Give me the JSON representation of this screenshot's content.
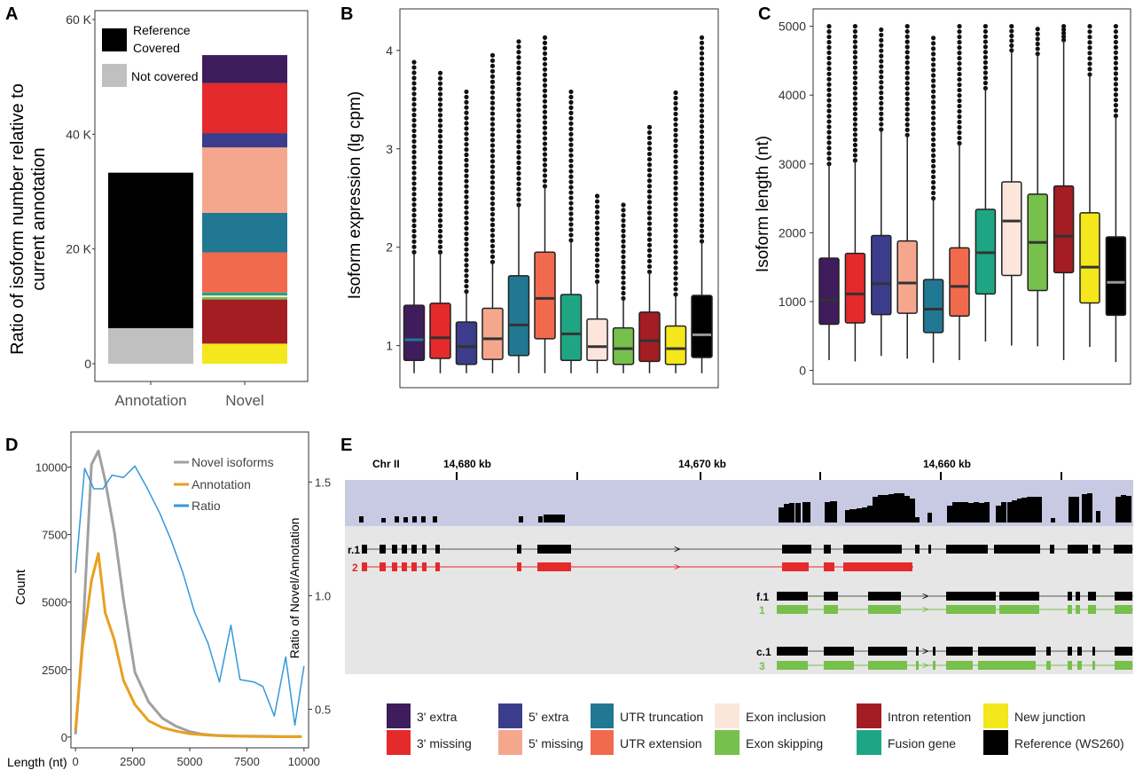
{
  "panel_labels": {
    "a": "A",
    "b": "B",
    "c": "C",
    "d": "D",
    "e": "E"
  },
  "colors": {
    "extra3": "#3f1c5b",
    "missing3": "#e52a2b",
    "extra5": "#3b3d8c",
    "missing5": "#f5a78e",
    "utr_trunc": "#217893",
    "utr_ext": "#f26a4d",
    "exon_incl": "#fce6dc",
    "exon_skip": "#77c04b",
    "intron_ret": "#a31d22",
    "fusion": "#1ea684",
    "new_junc": "#f4e71b",
    "reference": "#000000",
    "not_covered": "#c0c0c0",
    "novel_line": "#a0a0a0",
    "annotation_line": "#e8a01e",
    "ratio_line": "#3498db",
    "track_bg": "#c8c9e2",
    "tracks_bg": "#e6e6e6",
    "red_track": "#e52a2b",
    "green_track": "#77c04b"
  },
  "legend": [
    {
      "label": "3' extra",
      "color": "#3f1c5b"
    },
    {
      "label": "3' missing",
      "color": "#e52a2b"
    },
    {
      "label": "5' extra",
      "color": "#3b3d8c"
    },
    {
      "label": "5' missing",
      "color": "#f5a78e"
    },
    {
      "label": "UTR truncation",
      "color": "#217893"
    },
    {
      "label": "UTR extension",
      "color": "#f26a4d"
    },
    {
      "label": "Exon inclusion",
      "color": "#fce6dc"
    },
    {
      "label": "Exon skipping",
      "color": "#77c04b"
    },
    {
      "label": "Intron retention",
      "color": "#a31d22"
    },
    {
      "label": "Fusion gene",
      "color": "#1ea684"
    },
    {
      "label": "New junction",
      "color": "#f4e71b"
    },
    {
      "label": "Reference (WS260)",
      "color": "#000000"
    }
  ],
  "chart_data": [
    {
      "id": "A",
      "type": "bar",
      "ylabel": "Ratio of isoform number relative to current annotation",
      "yticks": [
        "0",
        "20 K",
        "40 K",
        "60 K"
      ],
      "ylim": [
        0,
        60000
      ],
      "categories": [
        "Annotation",
        "Novel"
      ],
      "legend": [
        {
          "label": "Reference Covered",
          "color": "#000000"
        },
        {
          "label": "Not covered",
          "color": "#c0c0c0"
        }
      ],
      "stacks": [
        {
          "category": "Annotation",
          "segments": [
            {
              "name": "Not covered",
              "value": 6200,
              "color": "#c0c0c0"
            },
            {
              "name": "Reference Covered",
              "value": 27100,
              "color": "#000000"
            }
          ]
        },
        {
          "category": "Novel",
          "segments": [
            {
              "name": "New junction",
              "value": 3500,
              "color": "#f4e71b"
            },
            {
              "name": "Intron retention",
              "value": 7700,
              "color": "#a31d22"
            },
            {
              "name": "Exon skipping",
              "value": 400,
              "color": "#77c04b"
            },
            {
              "name": "Exon inclusion",
              "value": 300,
              "color": "#fce6dc"
            },
            {
              "name": "Fusion gene",
              "value": 500,
              "color": "#1ea684"
            },
            {
              "name": "UTR extension",
              "value": 7000,
              "color": "#f26a4d"
            },
            {
              "name": "UTR truncation",
              "value": 6900,
              "color": "#217893"
            },
            {
              "name": "5' missing",
              "value": 11400,
              "color": "#f5a78e"
            },
            {
              "name": "5' extra",
              "value": 2500,
              "color": "#3b3d8c"
            },
            {
              "name": "3' missing",
              "value": 8700,
              "color": "#e52a2b"
            },
            {
              "name": "3' extra",
              "value": 4900,
              "color": "#3f1c5b"
            }
          ]
        }
      ]
    },
    {
      "id": "B",
      "type": "box",
      "ylabel": "Isoform expression (lg cpm)",
      "yticks": [
        "1",
        "2",
        "3",
        "4"
      ],
      "ylim": [
        0.6,
        4.35
      ],
      "boxes": [
        {
          "name": "3' extra",
          "color": "#3f1c5b",
          "min": 0.72,
          "q1": 0.85,
          "median": 1.06,
          "q3": 1.41,
          "max": 1.95,
          "outlier_top": 3.88,
          "median_color": "#217893"
        },
        {
          "name": "3' missing",
          "color": "#e52a2b",
          "min": 0.72,
          "q1": 0.87,
          "median": 1.08,
          "q3": 1.43,
          "max": 1.95,
          "outlier_top": 3.77,
          "median_color": "#333333"
        },
        {
          "name": "5' extra",
          "color": "#3b3d8c",
          "min": 0.72,
          "q1": 0.81,
          "median": 0.99,
          "q3": 1.24,
          "max": 1.55,
          "outlier_top": 3.58,
          "median_color": "#333333"
        },
        {
          "name": "5' missing",
          "color": "#f5a78e",
          "min": 0.72,
          "q1": 0.86,
          "median": 1.07,
          "q3": 1.38,
          "max": 1.85,
          "outlier_top": 3.95,
          "median_color": "#333333"
        },
        {
          "name": "UTR truncation",
          "color": "#217893",
          "min": 0.72,
          "q1": 0.9,
          "median": 1.21,
          "q3": 1.71,
          "max": 2.43,
          "outlier_top": 4.09,
          "median_color": "#333333"
        },
        {
          "name": "UTR extension",
          "color": "#f26a4d",
          "min": 0.72,
          "q1": 1.07,
          "median": 1.48,
          "q3": 1.95,
          "max": 2.62,
          "outlier_top": 4.13,
          "median_color": "#333333"
        },
        {
          "name": "Fusion gene",
          "color": "#1ea684",
          "min": 0.72,
          "q1": 0.85,
          "median": 1.12,
          "q3": 1.52,
          "max": 2.07,
          "outlier_top": 3.58,
          "median_color": "#333333"
        },
        {
          "name": "Exon inclusion",
          "color": "#fce6dc",
          "min": 0.72,
          "q1": 0.85,
          "median": 0.99,
          "q3": 1.27,
          "max": 1.65,
          "outlier_top": 2.52,
          "median_color": "#333333"
        },
        {
          "name": "Exon skipping",
          "color": "#77c04b",
          "min": 0.72,
          "q1": 0.81,
          "median": 0.97,
          "q3": 1.18,
          "max": 1.48,
          "outlier_top": 2.43,
          "median_color": "#333333"
        },
        {
          "name": "Intron retention",
          "color": "#a31d22",
          "min": 0.72,
          "q1": 0.84,
          "median": 1.05,
          "q3": 1.34,
          "max": 1.75,
          "outlier_top": 3.22,
          "median_color": "#333333"
        },
        {
          "name": "New junction",
          "color": "#f4e71b",
          "min": 0.72,
          "q1": 0.81,
          "median": 0.97,
          "q3": 1.2,
          "max": 1.52,
          "outlier_top": 3.57,
          "median_color": "#333333"
        },
        {
          "name": "Reference (WS260)",
          "color": "#000000",
          "min": 0.72,
          "q1": 0.88,
          "median": 1.11,
          "q3": 1.51,
          "max": 2.06,
          "outlier_top": 4.13,
          "median_color": "#999999"
        }
      ]
    },
    {
      "id": "C",
      "type": "box",
      "ylabel": "Isoform length (nt)",
      "yticks": [
        "0",
        "1000",
        "2000",
        "3000",
        "4000",
        "5000"
      ],
      "ylim": [
        -200,
        5150
      ],
      "boxes": [
        {
          "name": "3' extra",
          "color": "#3f1c5b",
          "min": 150,
          "q1": 670,
          "median": 1020,
          "q3": 1630,
          "max": 3000,
          "outlier_top": 5000
        },
        {
          "name": "3' missing",
          "color": "#e52a2b",
          "min": 130,
          "q1": 690,
          "median": 1110,
          "q3": 1700,
          "max": 3050,
          "outlier_top": 5000
        },
        {
          "name": "5' extra",
          "color": "#3b3d8c",
          "min": 210,
          "q1": 810,
          "median": 1260,
          "q3": 1960,
          "max": 3500,
          "outlier_top": 4950
        },
        {
          "name": "5' missing",
          "color": "#f5a78e",
          "min": 170,
          "q1": 830,
          "median": 1270,
          "q3": 1880,
          "max": 3420,
          "outlier_top": 5000
        },
        {
          "name": "UTR truncation",
          "color": "#217893",
          "min": 110,
          "q1": 550,
          "median": 890,
          "q3": 1320,
          "max": 2500,
          "outlier_top": 4830
        },
        {
          "name": "UTR extension",
          "color": "#f26a4d",
          "min": 150,
          "q1": 790,
          "median": 1220,
          "q3": 1780,
          "max": 3300,
          "outlier_top": 5000
        },
        {
          "name": "Fusion gene",
          "color": "#1ea684",
          "min": 420,
          "q1": 1110,
          "median": 1710,
          "q3": 2340,
          "max": 4100,
          "outlier_top": 5000
        },
        {
          "name": "Exon inclusion",
          "color": "#fce6dc",
          "min": 360,
          "q1": 1380,
          "median": 2170,
          "q3": 2740,
          "max": 4650,
          "outlier_top": 5000
        },
        {
          "name": "Exon skipping",
          "color": "#77c04b",
          "min": 350,
          "q1": 1160,
          "median": 1860,
          "q3": 2560,
          "max": 4600,
          "outlier_top": 4960
        },
        {
          "name": "Intron retention",
          "color": "#a31d22",
          "min": 150,
          "q1": 1420,
          "median": 1950,
          "q3": 2680,
          "max": 4800,
          "outlier_top": 5000
        },
        {
          "name": "New junction",
          "color": "#f4e71b",
          "min": 340,
          "q1": 980,
          "median": 1500,
          "q3": 2290,
          "max": 4300,
          "outlier_top": 5000
        },
        {
          "name": "Reference (WS260)",
          "color": "#000000",
          "min": 120,
          "q1": 800,
          "median": 1280,
          "q3": 1940,
          "max": 3700,
          "outlier_top": 5000,
          "median_color": "#999999"
        }
      ]
    },
    {
      "id": "D",
      "type": "line",
      "xlabel": "Length (nt)",
      "ylabel": "Count",
      "y2label": "Ratio of Novel/Annotation",
      "xticks": [
        "0",
        "2500",
        "5000",
        "7500",
        "10000"
      ],
      "yticks": [
        "0",
        "2500",
        "5000",
        "7500",
        "10000"
      ],
      "y2ticks": [
        "0.5",
        "1.0",
        "1.5"
      ],
      "xlim": [
        -200,
        10200
      ],
      "ylim": [
        -400,
        11300
      ],
      "y2lim": [
        0.33,
        1.72
      ],
      "series": [
        {
          "name": "Novel isoforms",
          "color": "#a0a0a0",
          "axis": "left",
          "x": [
            0,
            300,
            700,
            1000,
            1300,
            1700,
            2100,
            2600,
            3200,
            3800,
            4400,
            5000,
            5600,
            6200,
            7000,
            8000,
            9000,
            9900
          ],
          "y": [
            100,
            3500,
            10100,
            10600,
            9500,
            7600,
            5100,
            2400,
            1300,
            700,
            400,
            200,
            100,
            60,
            40,
            30,
            20,
            20
          ]
        },
        {
          "name": "Annotation",
          "color": "#e8a01e",
          "axis": "left",
          "x": [
            0,
            300,
            700,
            1000,
            1300,
            1700,
            2100,
            2600,
            3200,
            3800,
            4400,
            5000,
            5600,
            6200,
            7000,
            8000,
            9000,
            9900
          ],
          "y": [
            250,
            3300,
            5800,
            6800,
            4600,
            3600,
            2100,
            1200,
            600,
            350,
            220,
            120,
            80,
            50,
            30,
            20,
            10,
            10
          ]
        },
        {
          "name": "Ratio",
          "color": "#3498db",
          "axis": "right",
          "x": [
            0,
            400,
            800,
            1200,
            1600,
            2100,
            2600,
            3100,
            3700,
            4200,
            4700,
            5200,
            5800,
            6300,
            6800,
            7200,
            7800,
            8200,
            8700,
            9200,
            9600,
            10000
          ],
          "y": [
            1.1,
            1.56,
            1.47,
            1.47,
            1.53,
            1.52,
            1.57,
            1.48,
            1.36,
            1.24,
            1.1,
            0.93,
            0.79,
            0.62,
            0.87,
            0.63,
            0.62,
            0.6,
            0.47,
            0.73,
            0.43,
            0.69
          ]
        }
      ]
    },
    {
      "id": "E",
      "type": "genome_track",
      "chromosome": "Chr II",
      "coord_labels": [
        "14,680 kb",
        "14,670 kb",
        "14,660 kb"
      ],
      "track_labels": [
        "r.1",
        "2",
        "f.1",
        "1",
        "c.1",
        "3"
      ],
      "arrow_glyph": ">"
    }
  ]
}
